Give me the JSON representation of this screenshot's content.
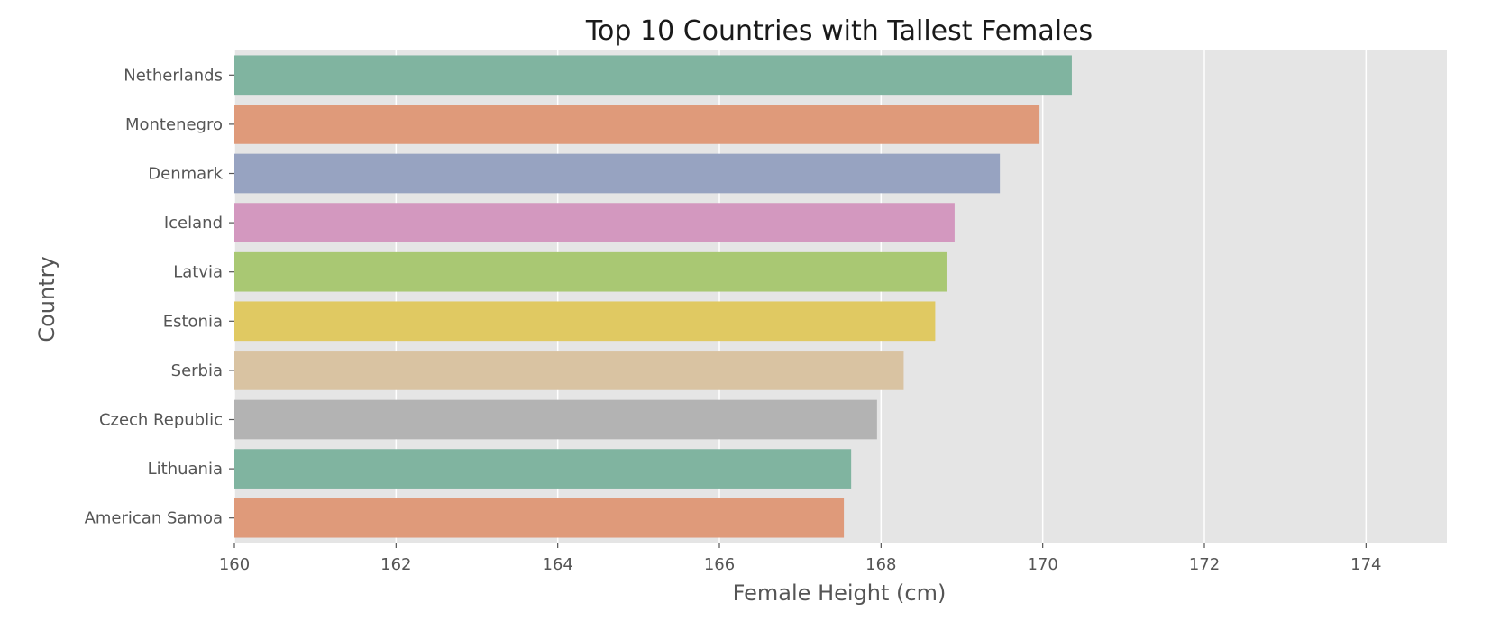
{
  "chart_data": {
    "type": "bar",
    "orientation": "horizontal",
    "title": "Top 10 Countries with Tallest Females",
    "xlabel": "Female Height (cm)",
    "ylabel": "Country",
    "xlim": [
      160,
      175
    ],
    "xticks": [
      "160",
      "162",
      "164",
      "166",
      "168",
      "170",
      "172",
      "174"
    ],
    "grid": true,
    "categories": [
      "Netherlands",
      "Montenegro",
      "Denmark",
      "Iceland",
      "Latvia",
      "Estonia",
      "Serbia",
      "Czech Republic",
      "Lithuania",
      "American Samoa"
    ],
    "values": [
      170.36,
      169.96,
      169.47,
      168.91,
      168.81,
      168.67,
      168.28,
      167.95,
      167.63,
      167.54
    ],
    "colors": [
      "#80b4a0",
      "#df9a7a",
      "#97a3c1",
      "#d398bf",
      "#a9c873",
      "#e0c962",
      "#d9c3a2",
      "#b3b3b3",
      "#80b4a0",
      "#df9a7a"
    ],
    "background_color": "#e5e5e5",
    "grid_color": "#ffffff"
  }
}
